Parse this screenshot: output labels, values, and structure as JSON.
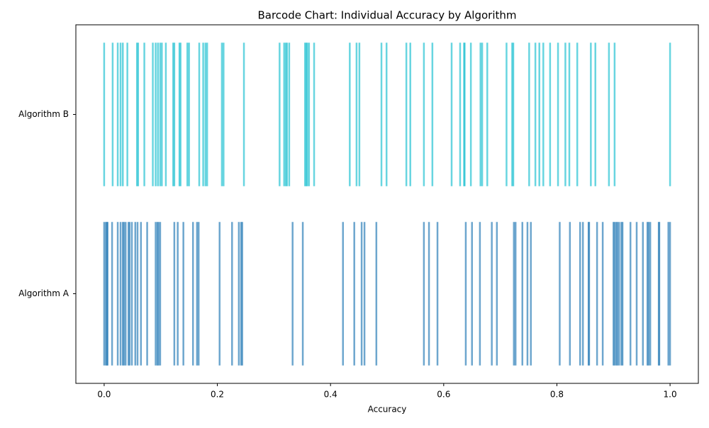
{
  "chart_data": {
    "type": "barcode",
    "title": "Barcode Chart: Individual Accuracy by Algorithm",
    "xlabel": "Accuracy",
    "xlim": [
      -0.05,
      1.05
    ],
    "xticks": [
      {
        "value": 0,
        "label": "0.0"
      },
      {
        "value": 0.2,
        "label": "0.2"
      },
      {
        "value": 0.4,
        "label": "0.4"
      },
      {
        "value": 0.6,
        "label": "0.6"
      },
      {
        "value": 0.8,
        "label": "0.8"
      },
      {
        "value": 1,
        "label": "1.0"
      }
    ],
    "series": [
      {
        "name": "Algorithm A",
        "color": "#1f77b4",
        "values": [
          0,
          0.003,
          0.005,
          0.006,
          0.014,
          0.024,
          0.029,
          0.033,
          0.035,
          0.038,
          0.043,
          0.045,
          0.049,
          0.055,
          0.059,
          0.065,
          0.076,
          0.091,
          0.094,
          0.096,
          0.099,
          0.124,
          0.13,
          0.14,
          0.157,
          0.164,
          0.167,
          0.204,
          0.226,
          0.238,
          0.242,
          0.244,
          0.333,
          0.351,
          0.422,
          0.442,
          0.455,
          0.46,
          0.481,
          0.565,
          0.574,
          0.589,
          0.639,
          0.65,
          0.664,
          0.685,
          0.694,
          0.724,
          0.727,
          0.739,
          0.748,
          0.754,
          0.805,
          0.823,
          0.841,
          0.846,
          0.856,
          0.857,
          0.871,
          0.881,
          0.9,
          0.902,
          0.905,
          0.907,
          0.91,
          0.914,
          0.916,
          0.93,
          0.941,
          0.952,
          0.96,
          0.962,
          0.965,
          0.98,
          0.981,
          0.997,
          1.0
        ]
      },
      {
        "name": "Algorithm B",
        "color": "#17becf",
        "values": [
          0,
          0.015,
          0.024,
          0.029,
          0.033,
          0.041,
          0.058,
          0.06,
          0.071,
          0.086,
          0.091,
          0.095,
          0.099,
          0.102,
          0.109,
          0.122,
          0.124,
          0.133,
          0.135,
          0.147,
          0.15,
          0.168,
          0.175,
          0.179,
          0.182,
          0.208,
          0.211,
          0.247,
          0.31,
          0.318,
          0.321,
          0.323,
          0.327,
          0.355,
          0.357,
          0.359,
          0.362,
          0.371,
          0.434,
          0.446,
          0.451,
          0.49,
          0.499,
          0.534,
          0.541,
          0.565,
          0.58,
          0.614,
          0.629,
          0.636,
          0.637,
          0.648,
          0.665,
          0.668,
          0.677,
          0.711,
          0.721,
          0.723,
          0.751,
          0.762,
          0.769,
          0.776,
          0.788,
          0.802,
          0.815,
          0.822,
          0.836,
          0.86,
          0.868,
          0.892,
          0.902,
          1.0
        ]
      }
    ]
  }
}
